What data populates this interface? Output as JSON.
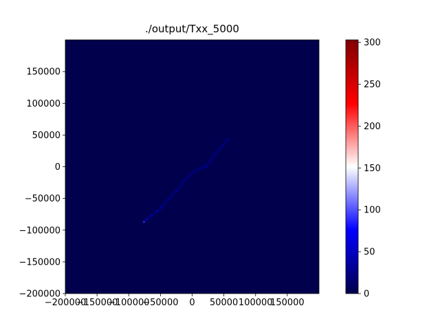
{
  "chart_data": {
    "type": "heatmap",
    "title": "./output/Txx_5000",
    "xlabel": "",
    "ylabel": "",
    "xlim": [
      -200000,
      200000
    ],
    "ylim": [
      -200000,
      200000
    ],
    "x_ticks": [
      -200000,
      -150000,
      -100000,
      -50000,
      0,
      50000,
      100000,
      150000
    ],
    "x_tick_labels": [
      "−200000",
      "−150000",
      "−100000",
      "−50000",
      "0",
      "50000",
      "100000",
      "150000"
    ],
    "y_ticks": [
      -200000,
      -150000,
      -100000,
      -50000,
      0,
      50000,
      100000,
      150000
    ],
    "y_tick_labels": [
      "−200000",
      "−150000",
      "−100000",
      "−50000",
      "0",
      "50000",
      "100000",
      "150000"
    ],
    "grid": false,
    "colormap": "seismic",
    "colormap_stops": [
      "#00004c",
      "#0000ff",
      "#ffffff",
      "#ff0000",
      "#7f0000"
    ],
    "background_color": "#00004c",
    "colorbar": {
      "range": [
        0,
        303
      ],
      "ticks": [
        0,
        50,
        100,
        150,
        200,
        250,
        300
      ],
      "tick_labels": [
        "0",
        "50",
        "100",
        "150",
        "200",
        "250",
        "300"
      ]
    },
    "feature": {
      "description_of_data": "narrow diagonal band of elevated values",
      "points": [
        {
          "x": -76000,
          "y": -87000,
          "value": 90
        },
        {
          "x": -72000,
          "y": -83000,
          "value": 60
        },
        {
          "x": -64000,
          "y": -77000,
          "value": 45
        },
        {
          "x": -55000,
          "y": -70000,
          "value": 55
        },
        {
          "x": -48000,
          "y": -64000,
          "value": 40
        },
        {
          "x": -38000,
          "y": -52000,
          "value": 30
        },
        {
          "x": -25000,
          "y": -38000,
          "value": 35
        },
        {
          "x": -12000,
          "y": -22000,
          "value": 25
        },
        {
          "x": 0,
          "y": -10000,
          "value": 20
        },
        {
          "x": 12000,
          "y": -2000,
          "value": 25
        },
        {
          "x": 22000,
          "y": 0,
          "value": 35
        },
        {
          "x": 35000,
          "y": 18000,
          "value": 20
        },
        {
          "x": 48000,
          "y": 33000,
          "value": 15
        },
        {
          "x": 58000,
          "y": 45000,
          "value": 12
        }
      ]
    }
  }
}
